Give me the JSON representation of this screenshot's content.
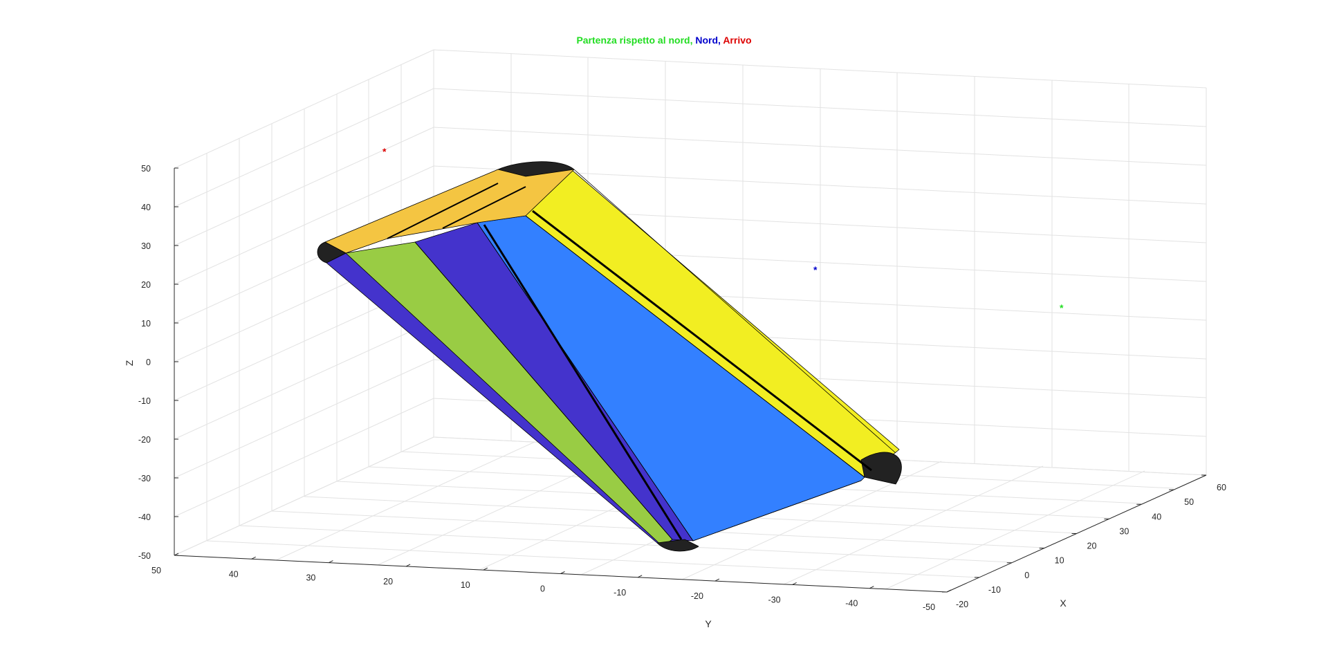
{
  "chart_data": {
    "type": "surface3d",
    "title_parts": [
      {
        "text": "Partenza rispetto al nord,",
        "color": "#22dd22"
      },
      {
        "text": "Nord,",
        "color": "#0000cc"
      },
      {
        "text": "Arrivo",
        "color": "#dd0000"
      }
    ],
    "xlabel": "X",
    "ylabel": "Y",
    "zlabel": "Z",
    "x_ticks": [
      "-20",
      "-10",
      "0",
      "10",
      "20",
      "30",
      "40",
      "50",
      "60"
    ],
    "y_ticks": [
      "50",
      "40",
      "30",
      "20",
      "10",
      "0",
      "-10",
      "-20",
      "-30",
      "-40",
      "-50"
    ],
    "z_ticks": [
      "50",
      "40",
      "30",
      "20",
      "10",
      "0",
      "-10",
      "-20",
      "-30",
      "-40",
      "-50"
    ],
    "xlim": [
      -20,
      60
    ],
    "ylim": [
      -50,
      50
    ],
    "zlim": [
      -50,
      50
    ],
    "grid": true,
    "points": [
      {
        "name": "Arrivo",
        "marker": "*",
        "color": "#dd0000"
      },
      {
        "name": "Nord",
        "marker": "*",
        "color": "#0000cc"
      },
      {
        "name": "Partenza rispetto al nord",
        "marker": "*",
        "color": "#22dd22"
      }
    ],
    "faces": [
      {
        "color": "#4433cc"
      },
      {
        "color": "#99cc44"
      },
      {
        "color": "#4433cc"
      },
      {
        "color": "#3380ff"
      },
      {
        "color": "#f2ee22"
      },
      {
        "color": "#f4c542"
      }
    ]
  }
}
